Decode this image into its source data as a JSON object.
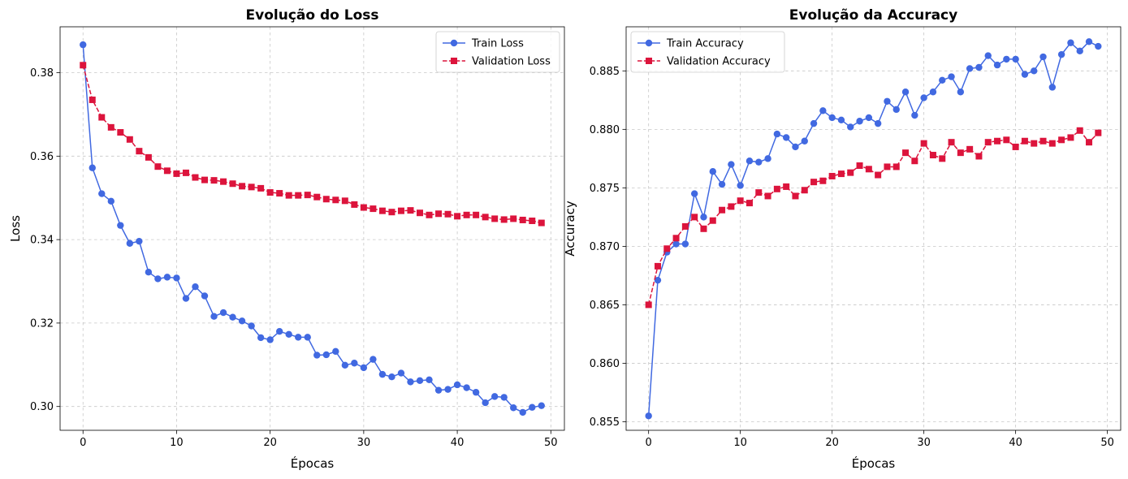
{
  "colors": {
    "train": "#4169e1",
    "validation": "#dc143c",
    "grid": "#b0b0b0"
  },
  "chart_data": [
    {
      "type": "line",
      "title": "Evolução do Loss",
      "xlabel": "Épocas",
      "ylabel": "Loss",
      "xlim": [
        -2.45,
        51.45
      ],
      "ylim": [
        0.2943,
        0.391
      ],
      "xticks": [
        0,
        10,
        20,
        30,
        40,
        50
      ],
      "xtick_labels": [
        "0",
        "10",
        "20",
        "30",
        "40",
        "50"
      ],
      "yticks": [
        0.3,
        0.32,
        0.34,
        0.36,
        0.38
      ],
      "ytick_labels": [
        "0.30",
        "0.32",
        "0.34",
        "0.36",
        "0.38"
      ],
      "grid": true,
      "legend": "top-right",
      "x": [
        0,
        1,
        2,
        3,
        4,
        5,
        6,
        7,
        8,
        9,
        10,
        11,
        12,
        13,
        14,
        15,
        16,
        17,
        18,
        19,
        20,
        21,
        22,
        23,
        24,
        25,
        26,
        27,
        28,
        29,
        30,
        31,
        32,
        33,
        34,
        35,
        36,
        37,
        38,
        39,
        40,
        41,
        42,
        43,
        44,
        45,
        46,
        47,
        48,
        49
      ],
      "series": [
        {
          "name": "Train Loss",
          "color": "#4169e1",
          "marker": "circle",
          "linestyle": "solid",
          "values": [
            0.3867,
            0.3572,
            0.351,
            0.3492,
            0.3434,
            0.3391,
            0.3396,
            0.3322,
            0.3306,
            0.331,
            0.3308,
            0.3259,
            0.3287,
            0.3265,
            0.3216,
            0.3225,
            0.3214,
            0.3205,
            0.3193,
            0.3165,
            0.316,
            0.318,
            0.3173,
            0.3166,
            0.3166,
            0.3123,
            0.3124,
            0.3132,
            0.3099,
            0.3104,
            0.3093,
            0.3113,
            0.3077,
            0.3071,
            0.308,
            0.3059,
            0.3062,
            0.3064,
            0.3039,
            0.3041,
            0.3052,
            0.3045,
            0.3034,
            0.3009,
            0.3024,
            0.3022,
            0.2997,
            0.2986,
            0.2998,
            0.3002
          ]
        },
        {
          "name": "Validation Loss",
          "color": "#dc143c",
          "marker": "square",
          "linestyle": "dashed",
          "values": [
            0.3818,
            0.3735,
            0.3693,
            0.3669,
            0.3657,
            0.364,
            0.3612,
            0.3597,
            0.3575,
            0.3565,
            0.3558,
            0.356,
            0.3549,
            0.3543,
            0.3542,
            0.3539,
            0.3534,
            0.3528,
            0.3526,
            0.3523,
            0.3513,
            0.3511,
            0.3506,
            0.3506,
            0.3507,
            0.3502,
            0.3497,
            0.3495,
            0.3493,
            0.3484,
            0.3477,
            0.3474,
            0.3469,
            0.3466,
            0.3469,
            0.347,
            0.3464,
            0.3459,
            0.3462,
            0.3461,
            0.3456,
            0.3459,
            0.3459,
            0.3454,
            0.345,
            0.3448,
            0.345,
            0.3447,
            0.3445,
            0.344
          ]
        }
      ]
    },
    {
      "type": "line",
      "title": "Evolução da Accuracy",
      "xlabel": "Épocas",
      "ylabel": "Accuracy",
      "xlim": [
        -2.45,
        51.45
      ],
      "ylim": [
        0.85427,
        0.88877
      ],
      "xticks": [
        0,
        10,
        20,
        30,
        40,
        50
      ],
      "xtick_labels": [
        "0",
        "10",
        "20",
        "30",
        "40",
        "50"
      ],
      "yticks": [
        0.855,
        0.86,
        0.865,
        0.87,
        0.875,
        0.88,
        0.885
      ],
      "ytick_labels": [
        "0.855",
        "0.860",
        "0.865",
        "0.870",
        "0.875",
        "0.880",
        "0.885"
      ],
      "grid": true,
      "legend": "top-left",
      "x": [
        0,
        1,
        2,
        3,
        4,
        5,
        6,
        7,
        8,
        9,
        10,
        11,
        12,
        13,
        14,
        15,
        16,
        17,
        18,
        19,
        20,
        21,
        22,
        23,
        24,
        25,
        26,
        27,
        28,
        29,
        30,
        31,
        32,
        33,
        34,
        35,
        36,
        37,
        38,
        39,
        40,
        41,
        42,
        43,
        44,
        45,
        46,
        47,
        48,
        49
      ],
      "series": [
        {
          "name": "Train Accuracy",
          "color": "#4169e1",
          "marker": "circle",
          "linestyle": "solid",
          "values": [
            0.8555,
            0.8671,
            0.8695,
            0.8702,
            0.8702,
            0.8745,
            0.8725,
            0.8764,
            0.8753,
            0.877,
            0.8752,
            0.8773,
            0.8772,
            0.8775,
            0.8796,
            0.8793,
            0.8785,
            0.879,
            0.8805,
            0.8816,
            0.881,
            0.8808,
            0.8802,
            0.8807,
            0.881,
            0.8805,
            0.8824,
            0.8817,
            0.8832,
            0.8812,
            0.8827,
            0.8832,
            0.8842,
            0.8845,
            0.8832,
            0.8852,
            0.8853,
            0.8863,
            0.8855,
            0.886,
            0.886,
            0.8847,
            0.885,
            0.8862,
            0.8836,
            0.8864,
            0.8874,
            0.8867,
            0.8875,
            0.8871
          ]
        },
        {
          "name": "Validation Accuracy",
          "color": "#dc143c",
          "marker": "square",
          "linestyle": "dashed",
          "values": [
            0.865,
            0.8683,
            0.8698,
            0.8707,
            0.8717,
            0.8725,
            0.8715,
            0.8722,
            0.8731,
            0.8734,
            0.8739,
            0.8737,
            0.8746,
            0.8743,
            0.8749,
            0.8751,
            0.8743,
            0.8748,
            0.8755,
            0.8756,
            0.876,
            0.8762,
            0.8763,
            0.8769,
            0.8766,
            0.8761,
            0.8768,
            0.8768,
            0.878,
            0.8773,
            0.8788,
            0.8778,
            0.8775,
            0.8789,
            0.878,
            0.8783,
            0.8777,
            0.8789,
            0.879,
            0.8791,
            0.8785,
            0.879,
            0.8788,
            0.879,
            0.8788,
            0.8791,
            0.8793,
            0.8799,
            0.8789,
            0.8797
          ]
        }
      ]
    }
  ]
}
